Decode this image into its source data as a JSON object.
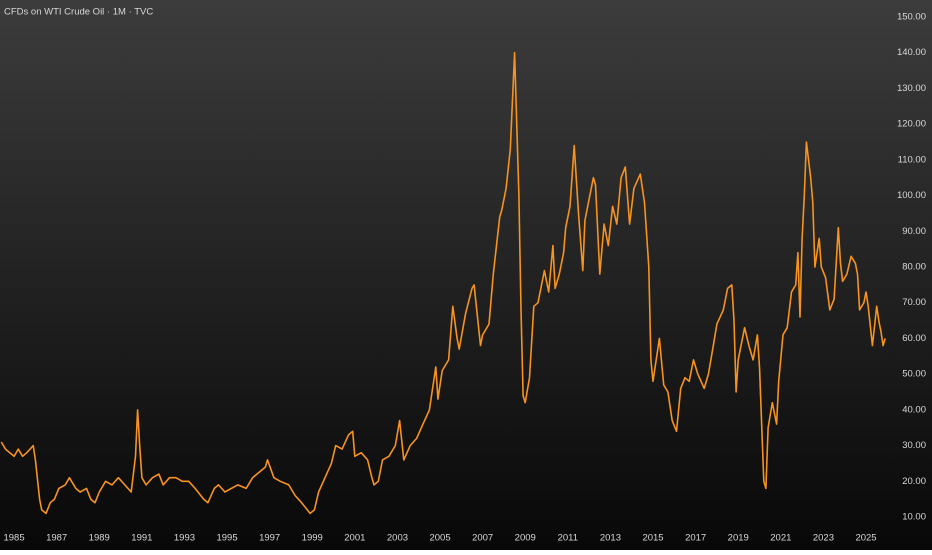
{
  "chart_data": {
    "type": "line",
    "title": "CFDs on WTI Crude Oil · 1M · TVC",
    "x": [
      1984.4,
      1984.6,
      1984.8,
      1985.0,
      1985.2,
      1985.4,
      1985.6,
      1985.9,
      1986.0,
      1986.2,
      1986.3,
      1986.5,
      1986.7,
      1986.9,
      1987.1,
      1987.4,
      1987.6,
      1987.9,
      1988.1,
      1988.4,
      1988.6,
      1988.8,
      1989.0,
      1989.3,
      1989.6,
      1989.9,
      1990.2,
      1990.5,
      1990.7,
      1990.8,
      1990.9,
      1991.0,
      1991.2,
      1991.5,
      1991.8,
      1992.0,
      1992.3,
      1992.6,
      1992.9,
      1993.2,
      1993.5,
      1993.9,
      1994.1,
      1994.4,
      1994.6,
      1994.9,
      1995.2,
      1995.5,
      1995.9,
      1996.2,
      1996.4,
      1996.8,
      1996.9,
      1997.2,
      1997.5,
      1997.9,
      1998.2,
      1998.5,
      1998.9,
      1999.1,
      1999.3,
      1999.6,
      1999.9,
      2000.1,
      2000.4,
      2000.7,
      2000.9,
      2001.0,
      2001.3,
      2001.6,
      2001.8,
      2001.9,
      2002.1,
      2002.3,
      2002.6,
      2002.9,
      2003.1,
      2003.3,
      2003.6,
      2003.9,
      2004.2,
      2004.5,
      2004.8,
      2004.9,
      2005.1,
      2005.4,
      2005.6,
      2005.8,
      2005.9,
      2006.2,
      2006.5,
      2006.6,
      2006.9,
      2007.0,
      2007.3,
      2007.5,
      2007.8,
      2007.9,
      2008.1,
      2008.3,
      2008.5,
      2008.7,
      2008.8,
      2008.9,
      2009.0,
      2009.2,
      2009.4,
      2009.6,
      2009.9,
      2010.1,
      2010.3,
      2010.4,
      2010.6,
      2010.8,
      2010.9,
      2011.1,
      2011.3,
      2011.5,
      2011.7,
      2011.8,
      2012.0,
      2012.2,
      2012.3,
      2012.5,
      2012.7,
      2012.9,
      2013.1,
      2013.3,
      2013.5,
      2013.7,
      2013.9,
      2014.1,
      2014.4,
      2014.6,
      2014.8,
      2014.9,
      2015.0,
      2015.3,
      2015.5,
      2015.7,
      2015.9,
      2016.1,
      2016.3,
      2016.5,
      2016.7,
      2016.9,
      2017.1,
      2017.4,
      2017.6,
      2017.8,
      2018.0,
      2018.3,
      2018.5,
      2018.7,
      2018.8,
      2018.9,
      2019.0,
      2019.3,
      2019.5,
      2019.7,
      2019.9,
      2020.0,
      2020.2,
      2020.3,
      2020.4,
      2020.6,
      2020.8,
      2020.9,
      2021.1,
      2021.3,
      2021.5,
      2021.7,
      2021.8,
      2021.9,
      2022.0,
      2022.1,
      2022.2,
      2022.4,
      2022.5,
      2022.6,
      2022.8,
      2022.9,
      2023.1,
      2023.3,
      2023.5,
      2023.7,
      2023.8,
      2023.9,
      2024.1,
      2024.3,
      2024.5,
      2024.6,
      2024.7,
      2024.9,
      2025.0,
      2025.1,
      2025.3,
      2025.5,
      2025.6,
      2025.7,
      2025.8,
      2025.85,
      2025.9
    ],
    "series": [
      {
        "color": "#f7931e",
        "values": [
          31,
          29,
          28,
          27,
          29,
          27,
          28,
          30,
          26,
          15,
          12,
          11,
          14,
          15,
          18,
          19,
          21,
          18,
          17,
          18,
          15,
          14,
          17,
          20,
          19,
          21,
          19,
          17,
          27,
          40,
          30,
          21,
          19,
          21,
          22,
          19,
          21,
          21,
          20,
          20,
          18,
          15,
          14,
          18,
          19,
          17,
          18,
          19,
          18,
          21,
          22,
          24,
          26,
          21,
          20,
          19,
          16,
          14,
          11,
          12,
          17,
          21,
          25,
          30,
          29,
          33,
          34,
          27,
          28,
          26,
          21,
          19,
          20,
          26,
          27,
          30,
          37,
          26,
          30,
          32,
          36,
          40,
          52,
          43,
          51,
          54,
          69,
          60,
          57,
          67,
          74,
          75,
          58,
          61,
          64,
          78,
          94,
          96,
          102,
          113,
          140,
          100,
          68,
          44,
          42,
          49,
          69,
          70,
          79,
          73,
          86,
          74,
          78,
          84,
          91,
          97,
          114,
          95,
          79,
          93,
          99,
          105,
          103,
          78,
          92,
          86,
          97,
          92,
          105,
          108,
          92,
          102,
          106,
          98,
          80,
          54,
          48,
          60,
          47,
          45,
          37,
          34,
          46,
          49,
          48,
          54,
          50,
          46,
          50,
          57,
          64,
          68,
          74,
          75,
          65,
          45,
          54,
          63,
          58,
          54,
          61,
          52,
          20,
          18,
          35,
          42,
          36,
          48,
          61,
          63,
          73,
          75,
          84,
          66,
          88,
          100,
          115,
          105,
          98,
          80,
          88,
          80,
          77,
          68,
          71,
          91,
          81,
          76,
          78,
          83,
          81,
          78,
          68,
          70,
          73,
          69,
          58,
          69,
          65,
          62,
          58,
          59,
          60
        ]
      }
    ],
    "xlim": [
      1984.34,
      2026.36
    ],
    "xticks": [
      1985,
      1987,
      1989,
      1991,
      1993,
      1995,
      1997,
      1999,
      2001,
      2003,
      2005,
      2007,
      2009,
      2011,
      2013,
      2015,
      2017,
      2019,
      2021,
      2023,
      2025
    ],
    "ylim": [
      6.36,
      154.76
    ],
    "yticks": [
      {
        "value": 10,
        "label": "10.00"
      },
      {
        "value": 20,
        "label": "20.00"
      },
      {
        "value": 30,
        "label": "30.00"
      },
      {
        "value": 40,
        "label": "40.00"
      },
      {
        "value": 50,
        "label": "50.00"
      },
      {
        "value": 60,
        "label": "60.00"
      },
      {
        "value": 70,
        "label": "70.00"
      },
      {
        "value": 80,
        "label": "80.00"
      },
      {
        "value": 90,
        "label": "90.00"
      },
      {
        "value": 100,
        "label": "100.00"
      },
      {
        "value": 110,
        "label": "110.00"
      },
      {
        "value": 120,
        "label": "120.00"
      },
      {
        "value": 130,
        "label": "130.00"
      },
      {
        "value": 140,
        "label": "140.00"
      },
      {
        "value": 150,
        "label": "150.00"
      }
    ],
    "grid": false
  }
}
